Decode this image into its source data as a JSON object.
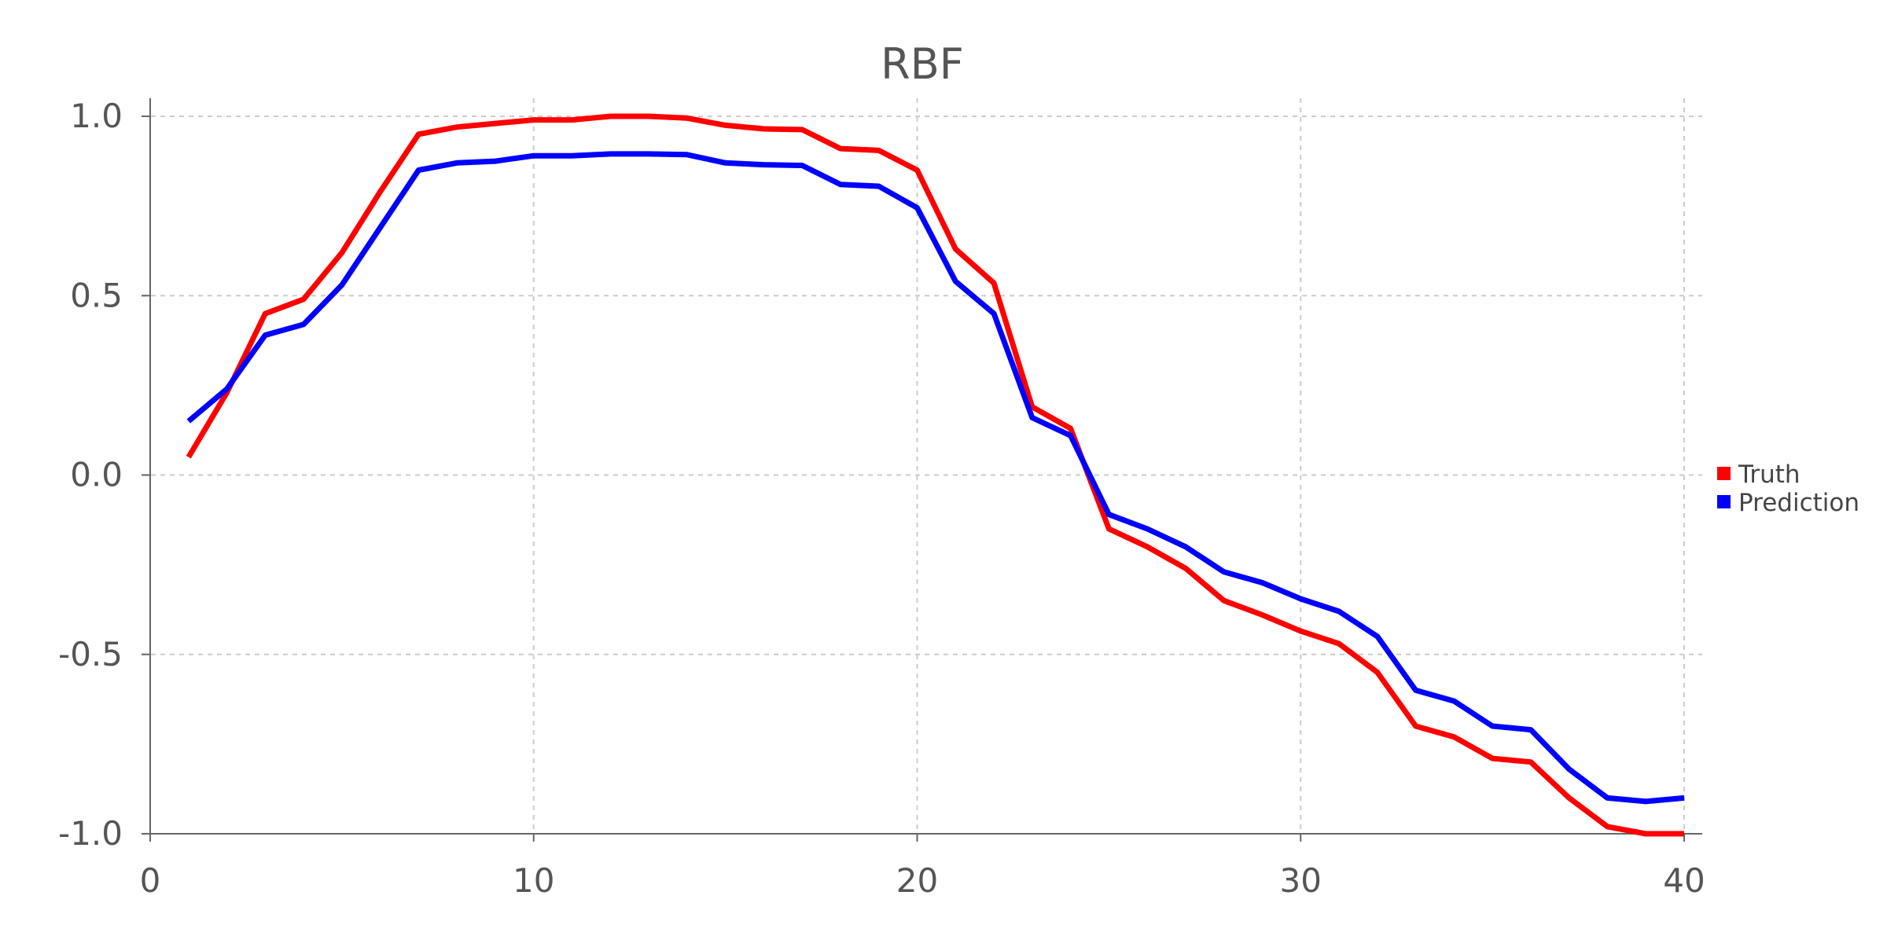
{
  "chart_data": {
    "type": "line",
    "title": "RBF",
    "xlabel": "",
    "ylabel": "",
    "xlim": [
      0,
      40
    ],
    "ylim": [
      -1.0,
      1.0
    ],
    "x_ticks": [
      0,
      10,
      20,
      30,
      40
    ],
    "x_tick_labels": [
      "0",
      "10",
      "20",
      "30",
      "40"
    ],
    "y_ticks": [
      1.0,
      0.5,
      0.0,
      -0.5,
      -1.0
    ],
    "y_tick_labels": [
      "1.0",
      "0.5",
      "0.0",
      "-0.5",
      "-1.0"
    ],
    "grid": true,
    "legend_position": "right",
    "x": [
      1,
      2,
      3,
      4,
      5,
      6,
      7,
      8,
      9,
      10,
      11,
      12,
      13,
      14,
      15,
      16,
      17,
      18,
      19,
      20,
      21,
      22,
      23,
      24,
      25,
      26,
      27,
      28,
      29,
      30,
      31,
      32,
      33,
      34,
      35,
      36,
      37,
      38,
      39,
      40
    ],
    "series": [
      {
        "name": "Truth",
        "color": "#ff0000",
        "values": [
          0.05,
          0.23,
          0.45,
          0.49,
          0.62,
          0.79,
          0.95,
          0.97,
          0.98,
          0.99,
          0.99,
          1.0,
          1.0,
          0.995,
          0.975,
          0.965,
          0.963,
          0.91,
          0.905,
          0.85,
          0.63,
          0.535,
          0.19,
          0.13,
          -0.15,
          -0.2,
          -0.26,
          -0.35,
          -0.39,
          -0.435,
          -0.47,
          -0.55,
          -0.7,
          -0.73,
          -0.79,
          -0.8,
          -0.9,
          -0.98,
          -1.0,
          -1.0
        ]
      },
      {
        "name": "Prediction",
        "color": "#0000ff",
        "values": [
          0.15,
          0.24,
          0.39,
          0.42,
          0.53,
          0.69,
          0.85,
          0.87,
          0.875,
          0.89,
          0.89,
          0.895,
          0.895,
          0.893,
          0.87,
          0.865,
          0.863,
          0.81,
          0.805,
          0.745,
          0.54,
          0.45,
          0.16,
          0.11,
          -0.11,
          -0.15,
          -0.2,
          -0.27,
          -0.3,
          -0.345,
          -0.38,
          -0.45,
          -0.6,
          -0.63,
          -0.7,
          -0.71,
          -0.82,
          -0.9,
          -0.91,
          -0.9
        ]
      }
    ]
  }
}
